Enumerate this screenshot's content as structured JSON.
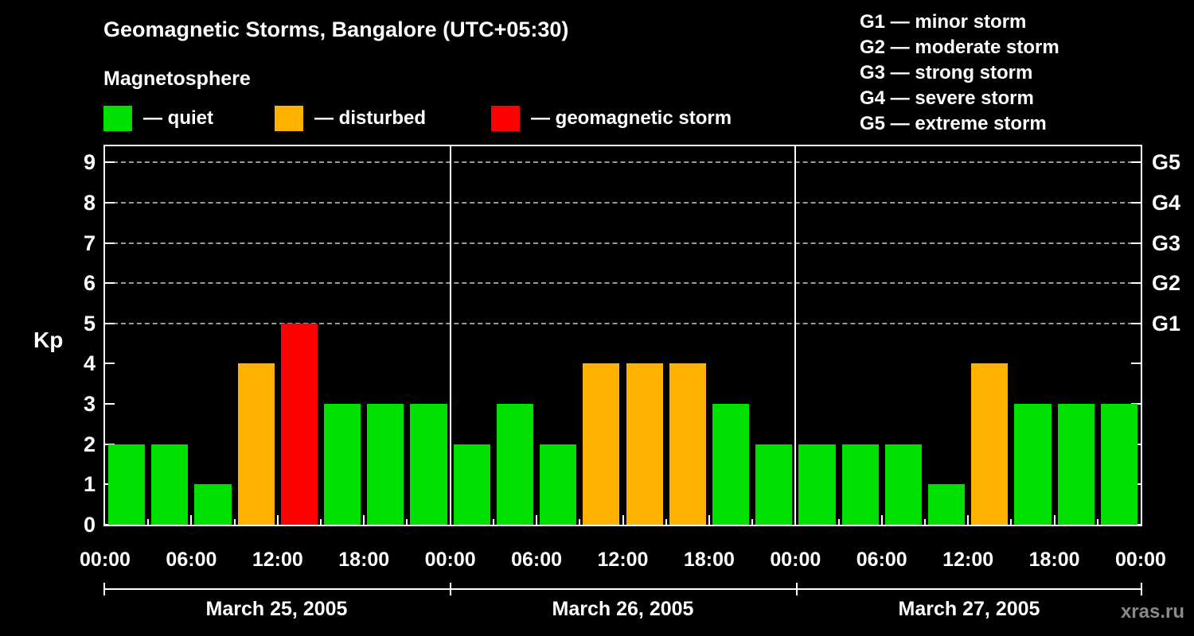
{
  "title": "Geomagnetic Storms, Bangalore (UTC+05:30)",
  "subtitle": "Magnetosphere",
  "legend": {
    "items": [
      {
        "key": "quiet",
        "label": "— quiet",
        "color": "#00e000"
      },
      {
        "key": "disturbed",
        "label": "— disturbed",
        "color": "#ffb300"
      },
      {
        "key": "storm",
        "label": "— geomagnetic storm",
        "color": "#ff0000"
      }
    ]
  },
  "storm_scale_legend": [
    "G1 — minor storm",
    "G2 — moderate storm",
    "G3 — strong storm",
    "G4 — severe storm",
    "G5 — extreme storm"
  ],
  "watermark": "xras.ru",
  "chart_data": {
    "type": "bar",
    "title": "Geomagnetic Storms, Bangalore (UTC+05:30)",
    "ylabel": "Kp",
    "ylim": [
      0,
      9.4
    ],
    "yticks": [
      0,
      1,
      2,
      3,
      4,
      5,
      6,
      7,
      8,
      9
    ],
    "gridlines_at": [
      5,
      6,
      7,
      8,
      9
    ],
    "grid_style": "dashed",
    "interval_hours": 3,
    "x_tick_labels": [
      "00:00",
      "06:00",
      "12:00",
      "18:00",
      "00:00",
      "06:00",
      "12:00",
      "18:00",
      "00:00",
      "06:00",
      "12:00",
      "18:00",
      "00:00"
    ],
    "right_axis": [
      {
        "label": "G1",
        "kp": 5
      },
      {
        "label": "G2",
        "kp": 6
      },
      {
        "label": "G3",
        "kp": 7
      },
      {
        "label": "G4",
        "kp": 8
      },
      {
        "label": "G5",
        "kp": 9
      }
    ],
    "days": [
      {
        "date": "March 25, 2005",
        "values": [
          2,
          2,
          1,
          4,
          5,
          3,
          3,
          3
        ]
      },
      {
        "date": "March 26, 2005",
        "values": [
          2,
          3,
          2,
          4,
          4,
          4,
          3,
          2
        ]
      },
      {
        "date": "March 27, 2005",
        "values": [
          2,
          2,
          2,
          1,
          4,
          3,
          3,
          3
        ]
      }
    ],
    "thresholds": {
      "quiet_max": 3,
      "disturbed_value": 4,
      "storm_min": 5
    },
    "colors": {
      "quiet": "#00e000",
      "disturbed": "#ffb300",
      "storm": "#ff0000",
      "background": "#000000",
      "frame": "#ffffff",
      "gridline": "#9a9a9a"
    },
    "legend_position": "top-left"
  }
}
